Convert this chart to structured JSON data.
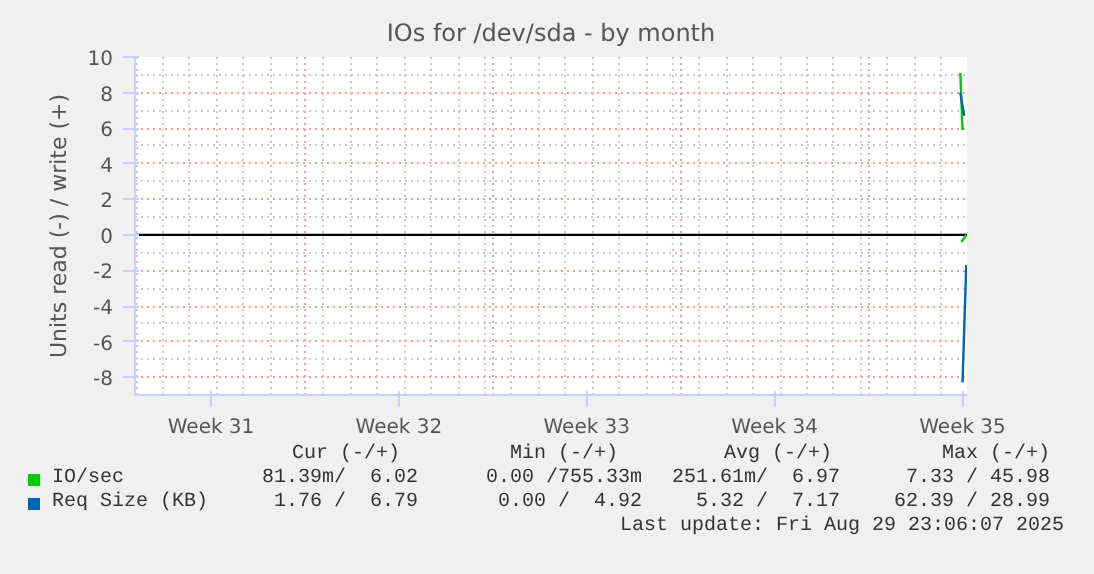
{
  "chart_data": {
    "type": "line",
    "title": "IOs for /dev/sda - by month",
    "ylabel": "Units read (-) / write (+)",
    "xlim": [
      "2025-07-29T23:00",
      "2025-08-29T23:00"
    ],
    "ylim": [
      -9,
      10
    ],
    "xticks": [
      {
        "value": "2025-08-01T19:00",
        "label": "Week 31"
      },
      {
        "value": "2025-08-05T07:00",
        "label": null
      },
      {
        "value": "2025-08-08T19:00",
        "label": "Week 32"
      },
      {
        "value": "2025-08-12T07:00",
        "label": null
      },
      {
        "value": "2025-08-15T19:00",
        "label": "Week 33"
      },
      {
        "value": "2025-08-19T07:00",
        "label": null
      },
      {
        "value": "2025-08-22T19:00",
        "label": "Week 34"
      },
      {
        "value": "2025-08-26T07:00",
        "label": null
      },
      {
        "value": "2025-08-29T19:00",
        "label": "Week 35"
      }
    ],
    "yticks": [
      -8,
      -6,
      -4,
      -2,
      0,
      2,
      4,
      6,
      8,
      10
    ],
    "series": [
      {
        "name": "IO/sec",
        "color": "#00cc00",
        "x": [
          "2025-08-29T17:00",
          "2025-08-29T19:00"
        ],
        "values": [
          9.1,
          5.9
        ]
      },
      {
        "color": "#00cc00",
        "x": [
          "2025-08-29T18:00",
          "2025-08-29T22:20"
        ],
        "values": [
          -0.4,
          0
        ]
      },
      {
        "name": "Req Size (KB)",
        "color": "#0066b3",
        "x": [
          "2025-08-29T17:00",
          "2025-08-29T20:30"
        ],
        "values": [
          8,
          6.7
        ]
      },
      {
        "color": "#0066b3",
        "x": [
          "2025-08-29T19:00",
          "2025-08-29T22:20"
        ],
        "values": [
          -8.3,
          -1.7
        ]
      }
    ],
    "ref_lines": [
      {
        "axis": "y",
        "value": 0,
        "color": "#000000"
      }
    ],
    "grid": true,
    "legend": "bottom",
    "marker": "none",
    "line_style": "solid",
    "annotations": [
      "Cur (-/+)",
      "Min (-/+)",
      "Avg (-/+)",
      "Max (-/+)",
      "81.39m/  6.02",
      "0.00 /755.33m",
      "251.61m/  6.97",
      "7.33 / 45.98",
      "1.76 /  6.79",
      "0.00 /  4.92",
      "5.32 /  7.17",
      "62.39 / 28.99",
      "Last update: Fri Aug 29 23:06:07 2025"
    ]
  }
}
